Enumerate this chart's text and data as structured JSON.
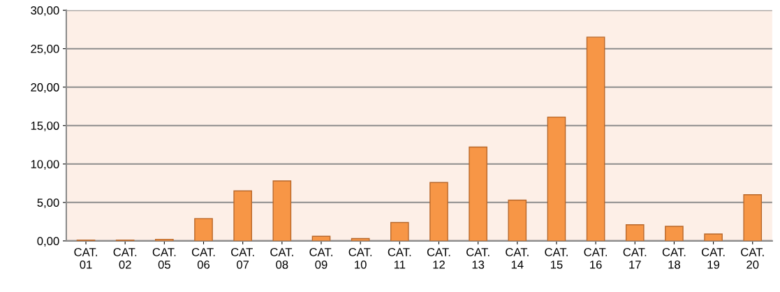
{
  "chart_data": {
    "type": "bar",
    "categories": [
      "CAT.\n01",
      "CAT.\n02",
      "CAT.\n05",
      "CAT.\n06",
      "CAT.\n07",
      "CAT.\n08",
      "CAT.\n09",
      "CAT.\n10",
      "CAT.\n11",
      "CAT.\n12",
      "CAT.\n13",
      "CAT.\n14",
      "CAT.\n15",
      "CAT.\n16",
      "CAT.\n17",
      "CAT.\n18",
      "CAT.\n19",
      "CAT.\n20"
    ],
    "values": [
      0.1,
      0.1,
      0.2,
      2.9,
      6.5,
      7.8,
      0.6,
      0.3,
      2.4,
      7.6,
      12.2,
      5.3,
      16.1,
      26.5,
      2.1,
      1.9,
      0.9,
      6.0
    ],
    "color": "#f79646",
    "ylim": [
      0,
      30
    ],
    "yticks": [
      {
        "value": 0,
        "label": "0,00"
      },
      {
        "value": 5,
        "label": "5,00"
      },
      {
        "value": 10,
        "label": "10,00"
      },
      {
        "value": 15,
        "label": "15,00"
      },
      {
        "value": 20,
        "label": "20,00"
      },
      {
        "value": 25,
        "label": "25,00"
      },
      {
        "value": 30,
        "label": "30,00"
      }
    ],
    "grid": "y"
  }
}
